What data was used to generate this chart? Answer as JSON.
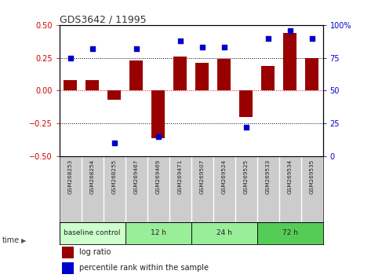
{
  "title": "GDS3642 / 11995",
  "samples": [
    "GSM268253",
    "GSM268254",
    "GSM268255",
    "GSM269467",
    "GSM269469",
    "GSM269471",
    "GSM269507",
    "GSM269524",
    "GSM269525",
    "GSM269533",
    "GSM269534",
    "GSM269535"
  ],
  "log_ratio": [
    0.08,
    0.08,
    -0.07,
    0.23,
    -0.36,
    0.26,
    0.21,
    0.24,
    -0.2,
    0.19,
    0.44,
    0.25
  ],
  "percentile_rank": [
    75,
    82,
    10,
    82,
    15,
    88,
    83,
    83,
    22,
    90,
    96,
    90
  ],
  "bar_color": "#990000",
  "dot_color": "#0000cc",
  "ylim_left": [
    -0.5,
    0.5
  ],
  "ylim_right": [
    0,
    100
  ],
  "yticks_left": [
    -0.5,
    -0.25,
    0,
    0.25,
    0.5
  ],
  "yticks_right": [
    0,
    25,
    50,
    75,
    100
  ],
  "hlines": [
    0.25,
    0,
    -0.25
  ],
  "hline_colors": [
    "black",
    "red",
    "black"
  ],
  "hline_styles": [
    "dotted",
    "dotted",
    "dotted"
  ],
  "groups": [
    {
      "label": "baseline control",
      "start": 0,
      "end": 3,
      "color": "#ccffcc"
    },
    {
      "label": "12 h",
      "start": 3,
      "end": 6,
      "color": "#99ee99"
    },
    {
      "label": "24 h",
      "start": 6,
      "end": 9,
      "color": "#99ee99"
    },
    {
      "label": "72 h",
      "start": 9,
      "end": 12,
      "color": "#55cc55"
    }
  ],
  "time_label": "time",
  "legend_log_ratio": "log ratio",
  "legend_percentile": "percentile rank within the sample",
  "bg_color": "#ffffff",
  "plot_bg_color": "#ffffff",
  "tick_label_color_left": "#cc0000",
  "tick_label_color_right": "#0000cc",
  "title_color": "#333333",
  "label_bg_color": "#cccccc"
}
